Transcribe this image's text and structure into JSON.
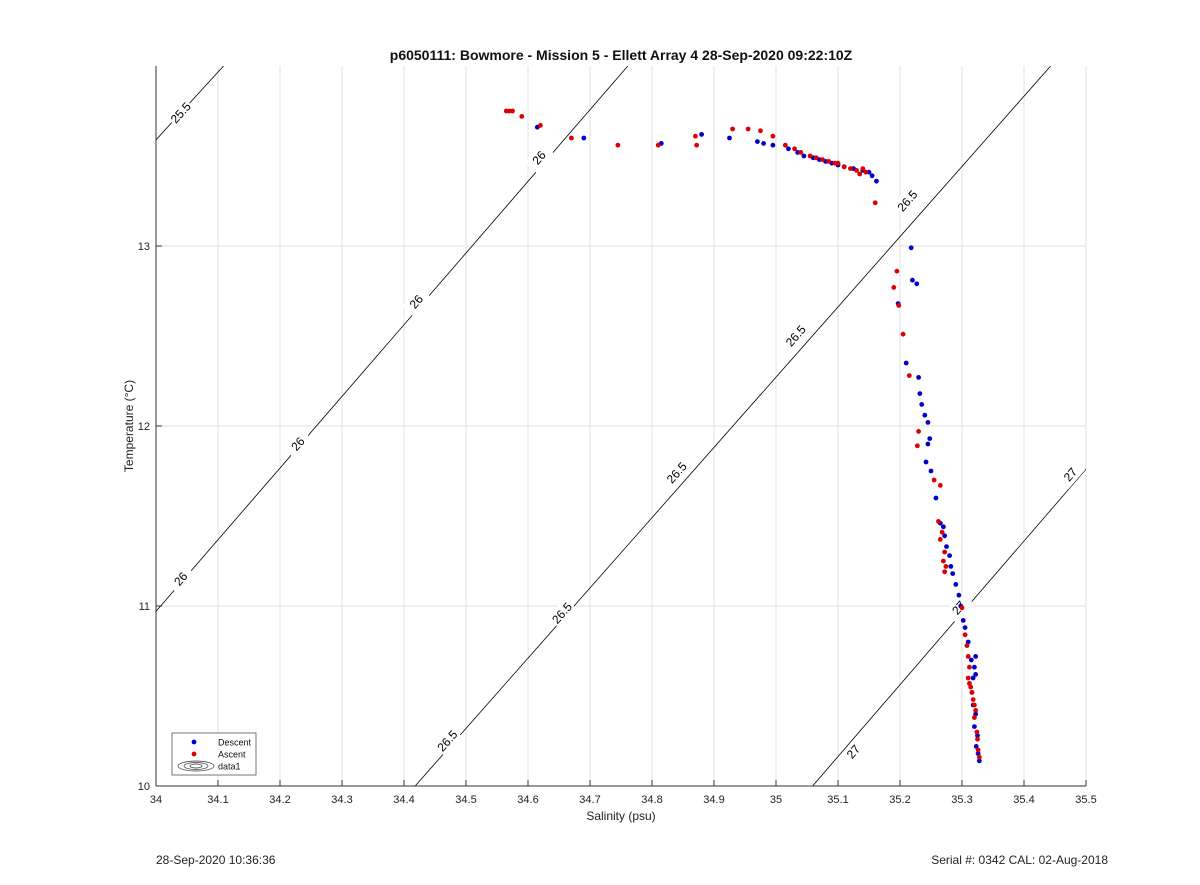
{
  "chart_data": {
    "type": "scatter",
    "title": "p6050111: Bowmore - Mission 5 - Ellett Array 4 28-Sep-2020 09:22:10Z",
    "xlabel": "Salinity (psu)",
    "ylabel": "Temperature (°C)",
    "xlim": [
      34,
      35.5
    ],
    "ylim": [
      10,
      14
    ],
    "x_ticks": [
      "34",
      "34.1",
      "34.2",
      "34.3",
      "34.4",
      "34.5",
      "34.6",
      "34.7",
      "34.8",
      "34.9",
      "35",
      "35.1",
      "35.2",
      "35.3",
      "35.4",
      "35.5"
    ],
    "y_ticks": [
      "10",
      "11",
      "12",
      "13"
    ],
    "grid": true,
    "legend_position": "bottom-left",
    "legend": [
      "Descent",
      "Ascent",
      "data1"
    ],
    "contours": [
      {
        "level": "25.5",
        "points": [
          [
            34.0,
            13.59
          ],
          [
            34.109,
            14.0
          ]
        ],
        "labels": [
          [
            34.04,
            13.74
          ]
        ]
      },
      {
        "level": "26",
        "points": [
          [
            34.0,
            10.97
          ],
          [
            34.761,
            14.0
          ]
        ],
        "labels": [
          [
            34.04,
            11.15
          ],
          [
            34.229,
            11.9
          ],
          [
            34.42,
            12.69
          ],
          [
            34.618,
            13.49
          ]
        ]
      },
      {
        "level": "26.5",
        "points": [
          [
            34.418,
            10.0
          ],
          [
            35.443,
            14.0
          ]
        ],
        "labels": [
          [
            34.47,
            10.25
          ],
          [
            34.655,
            10.96
          ],
          [
            34.84,
            11.74
          ],
          [
            35.032,
            12.5
          ],
          [
            35.212,
            13.25
          ]
        ]
      },
      {
        "level": "27",
        "points": [
          [
            35.059,
            10.0
          ],
          [
            35.5,
            11.76
          ]
        ],
        "labels": [
          [
            35.125,
            10.19
          ],
          [
            35.295,
            10.99
          ],
          [
            35.475,
            11.73
          ]
        ]
      }
    ],
    "series": [
      {
        "name": "Descent",
        "color": "#0000cc",
        "points": [
          [
            34.615,
            13.66
          ],
          [
            34.69,
            13.6
          ],
          [
            34.815,
            13.57
          ],
          [
            34.88,
            13.62
          ],
          [
            34.925,
            13.6
          ],
          [
            34.97,
            13.58
          ],
          [
            34.98,
            13.57
          ],
          [
            34.995,
            13.56
          ],
          [
            35.02,
            13.54
          ],
          [
            35.035,
            13.52
          ],
          [
            35.045,
            13.5
          ],
          [
            35.06,
            13.49
          ],
          [
            35.07,
            13.48
          ],
          [
            35.08,
            13.47
          ],
          [
            35.09,
            13.46
          ],
          [
            35.1,
            13.45
          ],
          [
            35.11,
            13.44
          ],
          [
            35.125,
            13.43
          ],
          [
            35.14,
            13.42
          ],
          [
            35.15,
            13.41
          ],
          [
            35.155,
            13.39
          ],
          [
            35.162,
            13.36
          ],
          [
            35.218,
            12.99
          ],
          [
            35.22,
            12.81
          ],
          [
            35.227,
            12.79
          ],
          [
            35.197,
            12.68
          ],
          [
            35.21,
            12.35
          ],
          [
            35.23,
            12.27
          ],
          [
            35.232,
            12.18
          ],
          [
            35.235,
            12.12
          ],
          [
            35.24,
            12.06
          ],
          [
            35.245,
            12.02
          ],
          [
            35.248,
            11.93
          ],
          [
            35.245,
            11.9
          ],
          [
            35.242,
            11.8
          ],
          [
            35.25,
            11.75
          ],
          [
            35.258,
            11.6
          ],
          [
            35.265,
            11.46
          ],
          [
            35.27,
            11.44
          ],
          [
            35.272,
            11.39
          ],
          [
            35.275,
            11.33
          ],
          [
            35.28,
            11.28
          ],
          [
            35.282,
            11.22
          ],
          [
            35.285,
            11.18
          ],
          [
            35.29,
            11.12
          ],
          [
            35.295,
            11.06
          ],
          [
            35.298,
            11.0
          ],
          [
            35.302,
            10.92
          ],
          [
            35.305,
            10.88
          ],
          [
            35.31,
            10.8
          ],
          [
            35.315,
            10.7
          ],
          [
            35.322,
            10.72
          ],
          [
            35.32,
            10.66
          ],
          [
            35.318,
            10.6
          ],
          [
            35.322,
            10.62
          ],
          [
            35.316,
            10.52
          ],
          [
            35.318,
            10.45
          ],
          [
            35.322,
            10.4
          ],
          [
            35.32,
            10.33
          ],
          [
            35.325,
            10.28
          ],
          [
            35.323,
            10.22
          ],
          [
            35.326,
            10.18
          ],
          [
            35.328,
            10.14
          ]
        ]
      },
      {
        "name": "Ascent",
        "color": "#dd0000",
        "points": [
          [
            34.565,
            13.75
          ],
          [
            34.57,
            13.75
          ],
          [
            34.575,
            13.75
          ],
          [
            34.59,
            13.72
          ],
          [
            34.62,
            13.67
          ],
          [
            34.67,
            13.6
          ],
          [
            34.745,
            13.56
          ],
          [
            34.81,
            13.56
          ],
          [
            34.87,
            13.61
          ],
          [
            34.872,
            13.56
          ],
          [
            34.93,
            13.65
          ],
          [
            34.955,
            13.65
          ],
          [
            34.975,
            13.64
          ],
          [
            34.995,
            13.61
          ],
          [
            35.015,
            13.56
          ],
          [
            35.03,
            13.54
          ],
          [
            35.04,
            13.52
          ],
          [
            35.055,
            13.5
          ],
          [
            35.065,
            13.49
          ],
          [
            35.075,
            13.48
          ],
          [
            35.085,
            13.47
          ],
          [
            35.095,
            13.46
          ],
          [
            35.1,
            13.46
          ],
          [
            35.11,
            13.44
          ],
          [
            35.12,
            13.43
          ],
          [
            35.13,
            13.42
          ],
          [
            35.14,
            13.43
          ],
          [
            35.135,
            13.4
          ],
          [
            35.145,
            13.41
          ],
          [
            35.16,
            13.24
          ],
          [
            35.195,
            12.86
          ],
          [
            35.19,
            12.77
          ],
          [
            35.198,
            12.67
          ],
          [
            35.205,
            12.51
          ],
          [
            35.215,
            12.28
          ],
          [
            35.23,
            11.97
          ],
          [
            35.228,
            11.89
          ],
          [
            35.255,
            11.7
          ],
          [
            35.265,
            11.67
          ],
          [
            35.262,
            11.47
          ],
          [
            35.268,
            11.41
          ],
          [
            35.265,
            11.37
          ],
          [
            35.272,
            11.3
          ],
          [
            35.27,
            11.25
          ],
          [
            35.274,
            11.22
          ],
          [
            35.272,
            11.19
          ],
          [
            35.3,
            10.99
          ],
          [
            35.305,
            10.84
          ],
          [
            35.308,
            10.78
          ],
          [
            35.31,
            10.72
          ],
          [
            35.312,
            10.66
          ],
          [
            35.31,
            10.6
          ],
          [
            35.312,
            10.57
          ],
          [
            35.314,
            10.55
          ],
          [
            35.316,
            10.52
          ],
          [
            35.318,
            10.48
          ],
          [
            35.32,
            10.45
          ],
          [
            35.322,
            10.42
          ],
          [
            35.32,
            10.38
          ],
          [
            35.324,
            10.3
          ],
          [
            35.325,
            10.26
          ],
          [
            35.326,
            10.2
          ],
          [
            35.328,
            10.16
          ]
        ]
      }
    ]
  },
  "footer": {
    "left": "28-Sep-2020 10:36:36",
    "right": "Serial #: 0342  CAL: 02-Aug-2018"
  }
}
